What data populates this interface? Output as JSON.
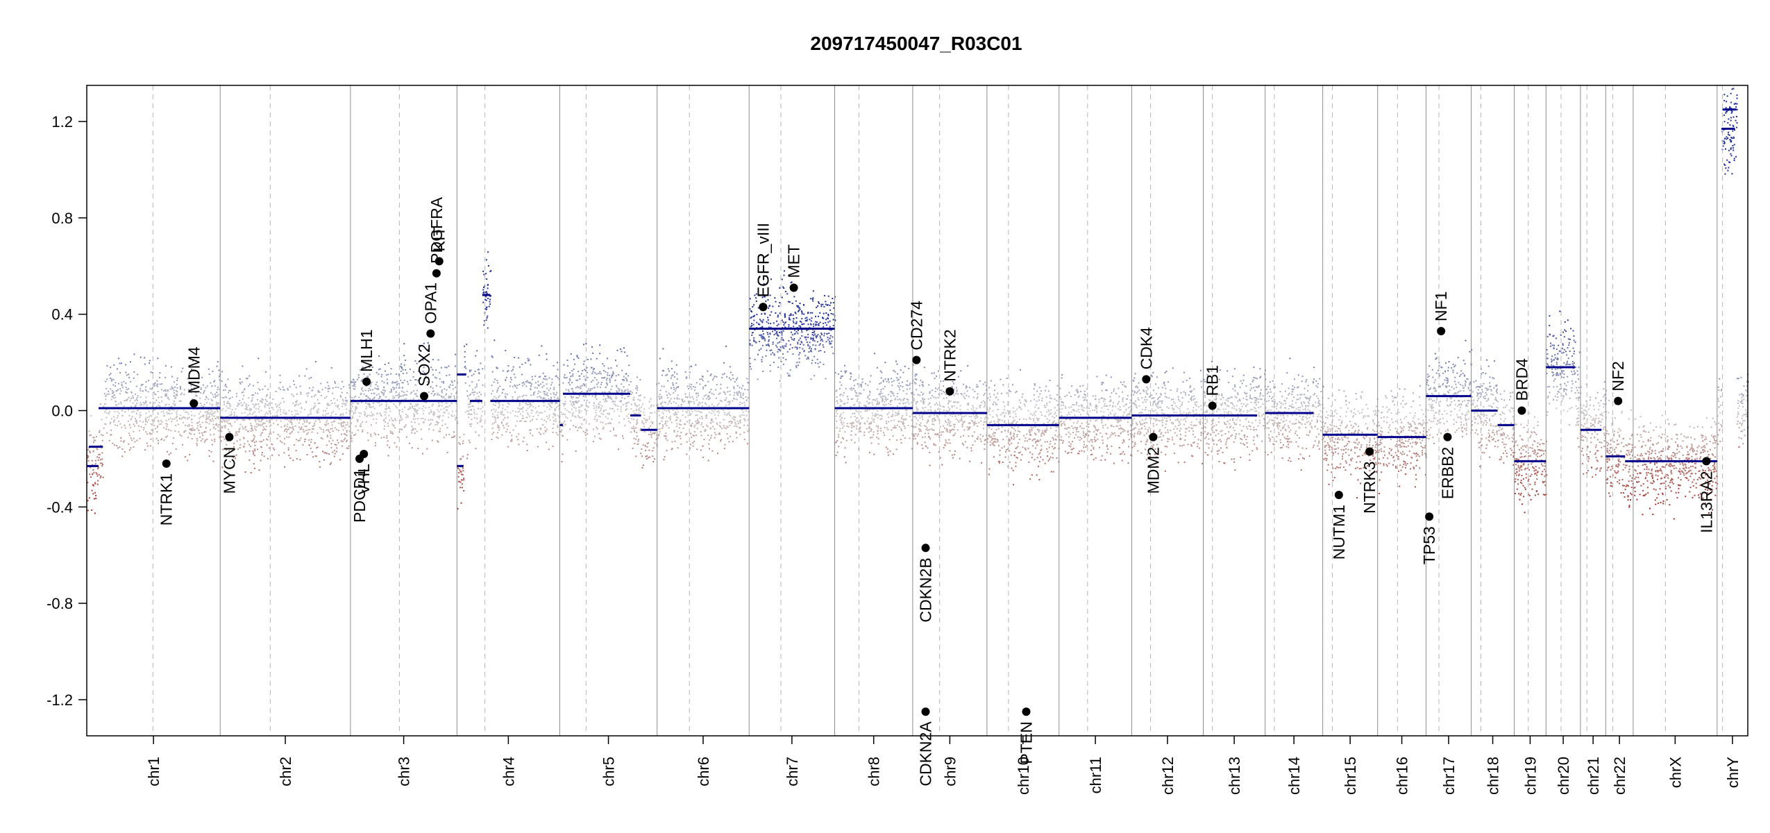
{
  "chart_data": {
    "type": "scatter",
    "title": "209717450047_R03C01",
    "xlabel": "",
    "ylabel": "",
    "ylim": [
      -1.35,
      1.35
    ],
    "yticks": [
      "1.2",
      "0.8",
      "0.4",
      "0.0",
      "-0.4",
      "-0.8",
      "-1.2"
    ],
    "ytick_values": [
      1.2,
      0.8,
      0.4,
      0.0,
      -0.4,
      -0.8,
      -1.2
    ],
    "colors": {
      "gain": "#1f2f9a",
      "loss": "#a32a20",
      "neutral": "#c8c8c8",
      "segment": "#00008b",
      "gene": "#000000",
      "border": "#8c8c8c",
      "centromere": "#b4b4b4"
    },
    "chromosomes": [
      {
        "name": "chr1",
        "start": 0,
        "end": 248,
        "cen": 123
      },
      {
        "name": "chr2",
        "start": 248,
        "end": 490,
        "cen": 341
      },
      {
        "name": "chr3",
        "start": 490,
        "end": 688,
        "cen": 581
      },
      {
        "name": "chr4",
        "start": 688,
        "end": 879,
        "cen": 740
      },
      {
        "name": "chr5",
        "start": 879,
        "end": 1060,
        "cen": 928
      },
      {
        "name": "chr6",
        "start": 1060,
        "end": 1231,
        "cen": 1120
      },
      {
        "name": "chr7",
        "start": 1231,
        "end": 1390,
        "cen": 1290
      },
      {
        "name": "chr8",
        "start": 1390,
        "end": 1535,
        "cen": 1435
      },
      {
        "name": "chr9",
        "start": 1535,
        "end": 1673,
        "cen": 1585
      },
      {
        "name": "chr10",
        "start": 1673,
        "end": 1807,
        "cen": 1713
      },
      {
        "name": "chr11",
        "start": 1807,
        "end": 1942,
        "cen": 1860
      },
      {
        "name": "chr12",
        "start": 1942,
        "end": 2075,
        "cen": 1977
      },
      {
        "name": "chr13",
        "start": 2075,
        "end": 2190,
        "cen": 2092
      },
      {
        "name": "chr14",
        "start": 2190,
        "end": 2297,
        "cen": 2207
      },
      {
        "name": "chr15",
        "start": 2297,
        "end": 2399,
        "cen": 2315
      },
      {
        "name": "chr16",
        "start": 2399,
        "end": 2489,
        "cen": 2436
      },
      {
        "name": "chr17",
        "start": 2489,
        "end": 2573,
        "cen": 2513
      },
      {
        "name": "chr18",
        "start": 2573,
        "end": 2653,
        "cen": 2591
      },
      {
        "name": "chr19",
        "start": 2653,
        "end": 2712,
        "cen": 2679
      },
      {
        "name": "chr20",
        "start": 2712,
        "end": 2776,
        "cen": 2740
      },
      {
        "name": "chr21",
        "start": 2776,
        "end": 2823,
        "cen": 2788
      },
      {
        "name": "chr22",
        "start": 2823,
        "end": 2874,
        "cen": 2836
      },
      {
        "name": "chrX",
        "start": 2874,
        "end": 3030,
        "cen": 2934
      },
      {
        "name": "chrY",
        "start": 3030,
        "end": 3087,
        "cen": 3040
      }
    ],
    "segments": [
      {
        "start": 0,
        "end": 22,
        "y": -0.23
      },
      {
        "start": 4,
        "end": 30,
        "y": -0.15
      },
      {
        "start": 22,
        "end": 248,
        "y": 0.01
      },
      {
        "start": 248,
        "end": 490,
        "y": -0.03
      },
      {
        "start": 490,
        "end": 688,
        "y": 0.04
      },
      {
        "start": 688,
        "end": 700,
        "y": -0.23
      },
      {
        "start": 688,
        "end": 705,
        "y": 0.15
      },
      {
        "start": 712,
        "end": 735,
        "y": 0.04
      },
      {
        "start": 735,
        "end": 750,
        "y": 0.48
      },
      {
        "start": 750,
        "end": 879,
        "y": 0.04
      },
      {
        "start": 879,
        "end": 885,
        "y": -0.06
      },
      {
        "start": 885,
        "end": 1010,
        "y": 0.07
      },
      {
        "start": 1010,
        "end": 1030,
        "y": -0.02
      },
      {
        "start": 1030,
        "end": 1060,
        "y": -0.08
      },
      {
        "start": 1060,
        "end": 1231,
        "y": 0.01
      },
      {
        "start": 1231,
        "end": 1390,
        "y": 0.34
      },
      {
        "start": 1390,
        "end": 1535,
        "y": 0.01
      },
      {
        "start": 1535,
        "end": 1673,
        "y": -0.01
      },
      {
        "start": 1673,
        "end": 1807,
        "y": -0.06
      },
      {
        "start": 1807,
        "end": 1942,
        "y": -0.03
      },
      {
        "start": 1942,
        "end": 2075,
        "y": -0.02
      },
      {
        "start": 2075,
        "end": 2175,
        "y": -0.02
      },
      {
        "start": 2190,
        "end": 2280,
        "y": -0.01
      },
      {
        "start": 2297,
        "end": 2399,
        "y": -0.1
      },
      {
        "start": 2399,
        "end": 2489,
        "y": -0.11
      },
      {
        "start": 2489,
        "end": 2573,
        "y": 0.06
      },
      {
        "start": 2573,
        "end": 2622,
        "y": 0.0
      },
      {
        "start": 2622,
        "end": 2653,
        "y": -0.06
      },
      {
        "start": 2653,
        "end": 2712,
        "y": -0.21
      },
      {
        "start": 2712,
        "end": 2766,
        "y": 0.18
      },
      {
        "start": 2776,
        "end": 2815,
        "y": -0.08
      },
      {
        "start": 2823,
        "end": 2859,
        "y": -0.19
      },
      {
        "start": 2859,
        "end": 3030,
        "y": -0.21
      },
      {
        "start": 3038,
        "end": 3063,
        "y": 1.17
      },
      {
        "start": 3040,
        "end": 3066,
        "y": 1.25
      }
    ],
    "genes": [
      {
        "name": "NTRK1",
        "x": 148,
        "y": -0.22
      },
      {
        "name": "MDM4",
        "x": 199,
        "y": 0.03
      },
      {
        "name": "MYCN",
        "x": 265,
        "y": -0.11
      },
      {
        "name": "PDGFRA",
        "x": 650,
        "y": 0.57
      },
      {
        "name": "OPA1",
        "x": 639,
        "y": 0.32
      },
      {
        "name": "SOX2",
        "x": 627,
        "y": 0.06
      },
      {
        "name": "MLH1",
        "x": 520,
        "y": 0.12
      },
      {
        "name": "PDCD1",
        "x": 507,
        "y": -0.2
      },
      {
        "name": "VHL",
        "x": 515,
        "y": -0.18
      },
      {
        "name": "KIT",
        "x": 655,
        "y": 0.62
      },
      {
        "name": "EGFR",
        "x": 1257,
        "y": 0.43
      },
      {
        "name": "EGFR_vIII",
        "x": 1257,
        "y": 0.43
      },
      {
        "name": "MET",
        "x": 1314,
        "y": 0.51
      },
      {
        "name": "CD274",
        "x": 1542,
        "y": 0.21
      },
      {
        "name": "CDKN2A",
        "x": 1559,
        "y": -1.25
      },
      {
        "name": "CDKN2B",
        "x": 1559,
        "y": -0.57
      },
      {
        "name": "NTRK2",
        "x": 1604,
        "y": 0.08
      },
      {
        "name": "PTEN",
        "x": 1746,
        "y": -1.25
      },
      {
        "name": "CDK4",
        "x": 1969,
        "y": 0.13
      },
      {
        "name": "MDM2",
        "x": 1982,
        "y": -0.11
      },
      {
        "name": "RB1",
        "x": 2092,
        "y": 0.02
      },
      {
        "name": "NUTM1",
        "x": 2327,
        "y": -0.35
      },
      {
        "name": "NTRK3",
        "x": 2384,
        "y": -0.17
      },
      {
        "name": "NF1",
        "x": 2517,
        "y": 0.33
      },
      {
        "name": "TP53",
        "x": 2495,
        "y": -0.44
      },
      {
        "name": "ERBB2",
        "x": 2529,
        "y": -0.11
      },
      {
        "name": "BRD4",
        "x": 2667,
        "y": 0.0
      },
      {
        "name": "NF2",
        "x": 2846,
        "y": 0.04
      },
      {
        "name": "IL13RA2",
        "x": 3010,
        "y": -0.21
      }
    ]
  }
}
